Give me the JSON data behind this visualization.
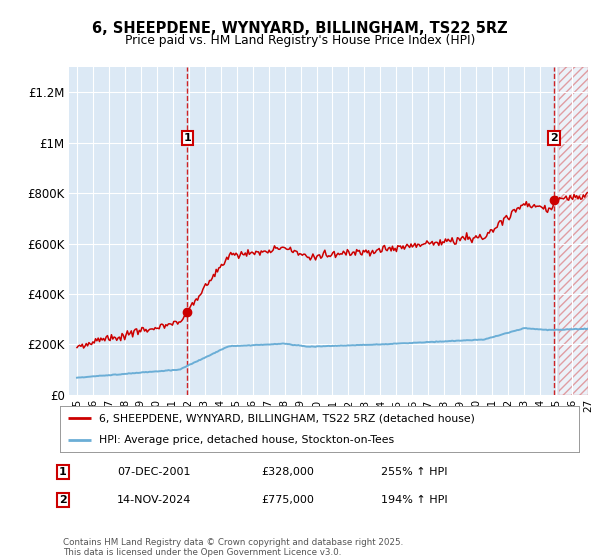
{
  "title": "6, SHEEPDENE, WYNYARD, BILLINGHAM, TS22 5RZ",
  "subtitle": "Price paid vs. HM Land Registry's House Price Index (HPI)",
  "legend_line1": "6, SHEEPDENE, WYNYARD, BILLINGHAM, TS22 5RZ (detached house)",
  "legend_line2": "HPI: Average price, detached house, Stockton-on-Tees",
  "footnote": "Contains HM Land Registry data © Crown copyright and database right 2025.\nThis data is licensed under the Open Government Licence v3.0.",
  "sale1_date": "07-DEC-2001",
  "sale1_price_str": "£328,000",
  "sale1_hpi": "255% ↑ HPI",
  "sale2_date": "14-NOV-2024",
  "sale2_price_str": "£775,000",
  "sale2_hpi": "194% ↑ HPI",
  "property_color": "#cc0000",
  "hpi_color": "#6baed6",
  "background_color": "#dce9f5",
  "ylim": [
    0,
    1300000
  ],
  "yticks": [
    0,
    200000,
    400000,
    600000,
    800000,
    1000000,
    1200000
  ],
  "ytick_labels": [
    "£0",
    "£200K",
    "£400K",
    "£600K",
    "£800K",
    "£1M",
    "£1.2M"
  ],
  "sale1_year": 2001.92,
  "sale2_year": 2024.87,
  "sale1_price": 328000,
  "sale2_price": 775000,
  "xmin": 1994.5,
  "xmax": 2027.0,
  "hatch_start": 2025.17
}
